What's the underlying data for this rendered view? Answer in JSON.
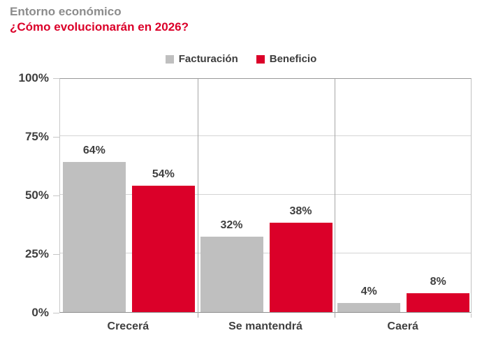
{
  "header": {
    "title": "Entorno económico",
    "subtitle": "¿Cómo evolucionarán en 2026?"
  },
  "chart_data": {
    "type": "bar",
    "title": "Entorno económico",
    "subtitle": "¿Cómo evolucionarán en 2026?",
    "categories": [
      "Crecerá",
      "Se mantendrá",
      "Caerá"
    ],
    "series": [
      {
        "name": "Facturación",
        "color": "#BFBFBF",
        "values": [
          64,
          32,
          4
        ]
      },
      {
        "name": "Beneficio",
        "color": "#DB0029",
        "values": [
          54,
          38,
          8
        ]
      }
    ],
    "value_suffix": "%",
    "y_ticks": [
      {
        "value": 0,
        "label": "0%"
      },
      {
        "value": 25,
        "label": "25%"
      },
      {
        "value": 50,
        "label": "50%"
      },
      {
        "value": 75,
        "label": "75%"
      },
      {
        "value": 100,
        "label": "100%"
      }
    ],
    "ylim": [
      0,
      100
    ],
    "grid": "horizontal-gridlines-and-vertical-panel-separators",
    "legend_position": "top-center",
    "data_labels": "above-bars"
  },
  "colors": {
    "title_gray": "#8C8C8C",
    "accent_red": "#DB0029",
    "bar_gray": "#BFBFBF",
    "text_dark": "#3F3F3F",
    "gridline": "#D4D4D4",
    "panel_separator": "#A6A6A6",
    "axis": "#999999"
  }
}
